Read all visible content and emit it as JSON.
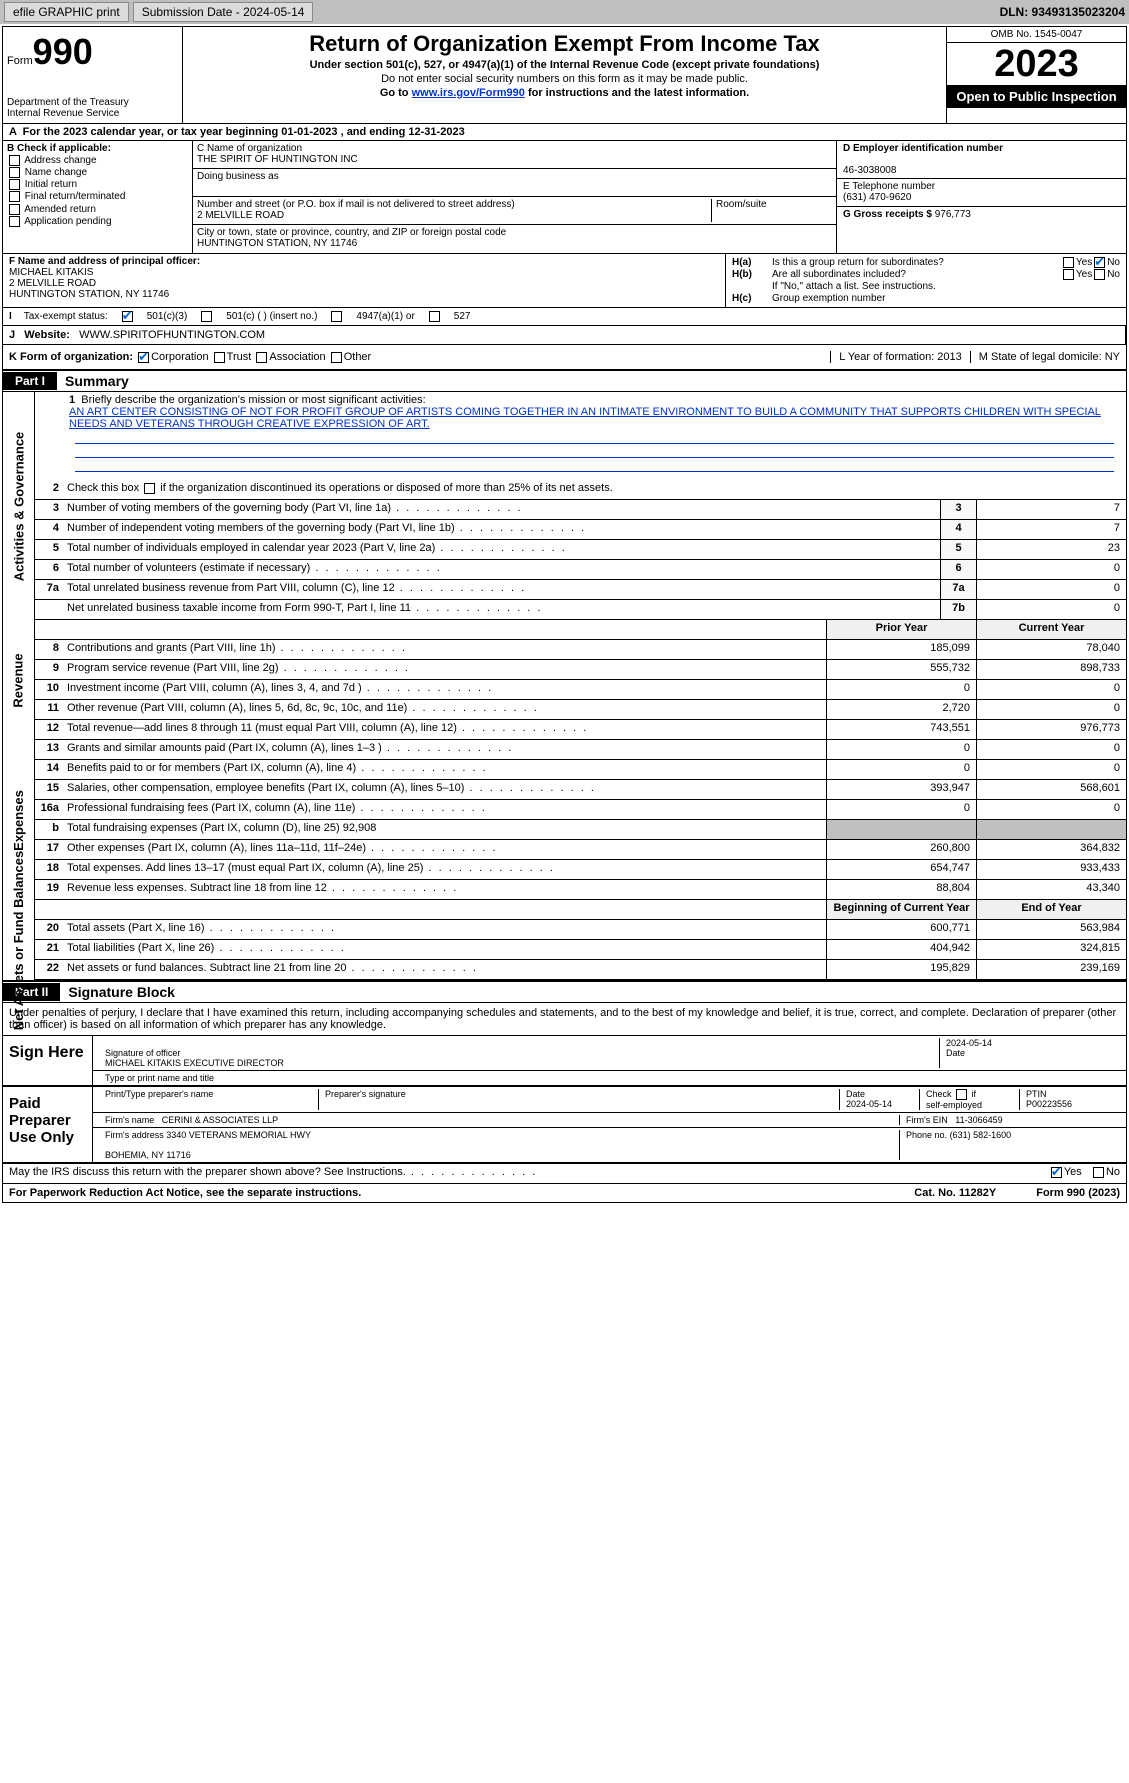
{
  "topbar": {
    "efile": "efile GRAPHIC print",
    "submission_label": "Submission Date - 2024-05-14",
    "dln": "DLN: 93493135023204"
  },
  "header": {
    "form_prefix": "Form",
    "form_number": "990",
    "dept": "Department of the Treasury",
    "irs": "Internal Revenue Service",
    "title": "Return of Organization Exempt From Income Tax",
    "sub1": "Under section 501(c), 527, or 4947(a)(1) of the Internal Revenue Code (except private foundations)",
    "sub2": "Do not enter social security numbers on this form as it may be made public.",
    "sub3_pre": "Go to ",
    "sub3_link": "www.irs.gov/Form990",
    "sub3_post": " for instructions and the latest information.",
    "omb": "OMB No. 1545-0047",
    "year": "2023",
    "inspection": "Open to Public Inspection"
  },
  "row_a": "For the 2023 calendar year, or tax year beginning 01-01-2023    , and ending 12-31-2023",
  "section_b": {
    "label": "B Check if applicable:",
    "opts": [
      "Address change",
      "Name change",
      "Initial return",
      "Final return/terminated",
      "Amended return",
      "Application pending"
    ]
  },
  "section_c": {
    "name_label": "C Name of organization",
    "name": "THE SPIRIT OF HUNTINGTON INC",
    "dba_label": "Doing business as",
    "dba": "",
    "street_label": "Number and street (or P.O. box if mail is not delivered to street address)",
    "street": "2 MELVILLE ROAD",
    "room_label": "Room/suite",
    "city_label": "City or town, state or province, country, and ZIP or foreign postal code",
    "city": "HUNTINGTON STATION, NY  11746"
  },
  "section_d": {
    "ein_label": "D Employer identification number",
    "ein": "46-3038008",
    "phone_label": "E Telephone number",
    "phone": "(631) 470-9620",
    "gross_label": "G Gross receipts $",
    "gross": "976,773"
  },
  "section_f": {
    "label": "F  Name and address of principal officer:",
    "name": "MICHAEL KITAKIS",
    "street": "2 MELVILLE ROAD",
    "city": "HUNTINGTON STATION, NY  11746"
  },
  "section_h": {
    "ha": "Is this a group return for subordinates?",
    "hb": "Are all subordinates included?",
    "hb_note": "If \"No,\" attach a list. See instructions.",
    "hc": "Group exemption number"
  },
  "row_i": {
    "label": "Tax-exempt status:",
    "opt1": "501(c)(3)",
    "opt2": "501(c) (  ) (insert no.)",
    "opt3": "4947(a)(1) or",
    "opt4": "527"
  },
  "row_j": {
    "label": "Website:",
    "value": "WWW.SPIRITOFHUNTINGTON.COM"
  },
  "row_k": {
    "label": "K Form of organization:",
    "opts": [
      "Corporation",
      "Trust",
      "Association",
      "Other"
    ],
    "l": "L Year of formation: 2013",
    "m": "M State of legal domicile: NY"
  },
  "part1": {
    "tag": "Part I",
    "title": "Summary",
    "mission_label": "Briefly describe the organization's mission or most significant activities:",
    "mission": "AN ART CENTER CONSISTING OF NOT FOR PROFIT GROUP OF ARTISTS COMING TOGETHER IN AN INTIMATE ENVIRONMENT TO BUILD A COMMUNITY THAT SUPPORTS CHILDREN WITH SPECIAL NEEDS AND VETERANS THROUGH CREATIVE EXPRESSION OF ART.",
    "line2": "Check this box      if the organization discontinued its operations or disposed of more than 25% of its net assets.",
    "sections": {
      "governance": "Activities & Governance",
      "revenue": "Revenue",
      "expenses": "Expenses",
      "netassets": "Net Assets or Fund Balances"
    },
    "gov_lines": [
      {
        "n": "3",
        "d": "Number of voting members of the governing body (Part VI, line 1a)",
        "b": "3",
        "v": "7"
      },
      {
        "n": "4",
        "d": "Number of independent voting members of the governing body (Part VI, line 1b)",
        "b": "4",
        "v": "7"
      },
      {
        "n": "5",
        "d": "Total number of individuals employed in calendar year 2023 (Part V, line 2a)",
        "b": "5",
        "v": "23"
      },
      {
        "n": "6",
        "d": "Total number of volunteers (estimate if necessary)",
        "b": "6",
        "v": "0"
      },
      {
        "n": "7a",
        "d": "Total unrelated business revenue from Part VIII, column (C), line 12",
        "b": "7a",
        "v": "0"
      },
      {
        "n": "",
        "d": "Net unrelated business taxable income from Form 990-T, Part I, line 11",
        "b": "7b",
        "v": "0"
      }
    ],
    "rev_hdr": {
      "prior": "Prior Year",
      "curr": "Current Year"
    },
    "rev_lines": [
      {
        "n": "8",
        "d": "Contributions and grants (Part VIII, line 1h)",
        "p": "185,099",
        "c": "78,040"
      },
      {
        "n": "9",
        "d": "Program service revenue (Part VIII, line 2g)",
        "p": "555,732",
        "c": "898,733"
      },
      {
        "n": "10",
        "d": "Investment income (Part VIII, column (A), lines 3, 4, and 7d )",
        "p": "0",
        "c": "0"
      },
      {
        "n": "11",
        "d": "Other revenue (Part VIII, column (A), lines 5, 6d, 8c, 9c, 10c, and 11e)",
        "p": "2,720",
        "c": "0"
      },
      {
        "n": "12",
        "d": "Total revenue—add lines 8 through 11 (must equal Part VIII, column (A), line 12)",
        "p": "743,551",
        "c": "976,773"
      }
    ],
    "exp_lines": [
      {
        "n": "13",
        "d": "Grants and similar amounts paid (Part IX, column (A), lines 1–3 )",
        "p": "0",
        "c": "0"
      },
      {
        "n": "14",
        "d": "Benefits paid to or for members (Part IX, column (A), line 4)",
        "p": "0",
        "c": "0"
      },
      {
        "n": "15",
        "d": "Salaries, other compensation, employee benefits (Part IX, column (A), lines 5–10)",
        "p": "393,947",
        "c": "568,601"
      },
      {
        "n": "16a",
        "d": "Professional fundraising fees (Part IX, column (A), line 11e)",
        "p": "0",
        "c": "0"
      },
      {
        "n": "b",
        "d": "Total fundraising expenses (Part IX, column (D), line 25) 92,908",
        "p": "",
        "c": "",
        "grey": true
      },
      {
        "n": "17",
        "d": "Other expenses (Part IX, column (A), lines 11a–11d, 11f–24e)",
        "p": "260,800",
        "c": "364,832"
      },
      {
        "n": "18",
        "d": "Total expenses. Add lines 13–17 (must equal Part IX, column (A), line 25)",
        "p": "654,747",
        "c": "933,433"
      },
      {
        "n": "19",
        "d": "Revenue less expenses. Subtract line 18 from line 12",
        "p": "88,804",
        "c": "43,340"
      }
    ],
    "na_hdr": {
      "prior": "Beginning of Current Year",
      "curr": "End of Year"
    },
    "na_lines": [
      {
        "n": "20",
        "d": "Total assets (Part X, line 16)",
        "p": "600,771",
        "c": "563,984"
      },
      {
        "n": "21",
        "d": "Total liabilities (Part X, line 26)",
        "p": "404,942",
        "c": "324,815"
      },
      {
        "n": "22",
        "d": "Net assets or fund balances. Subtract line 21 from line 20",
        "p": "195,829",
        "c": "239,169"
      }
    ]
  },
  "part2": {
    "tag": "Part II",
    "title": "Signature Block",
    "intro": "Under penalties of perjury, I declare that I have examined this return, including accompanying schedules and statements, and to the best of my knowledge and belief, it is true, correct, and complete. Declaration of preparer (other than officer) is based on all information of which preparer has any knowledge.",
    "sign_here": "Sign Here",
    "sig_officer": "Signature of officer",
    "officer_name": "MICHAEL KITAKIS EXECUTIVE DIRECTOR",
    "officer_title_label": "Type or print name and title",
    "date": "2024-05-14",
    "paid_label": "Paid Preparer Use Only",
    "prep_name_label": "Print/Type preparer's name",
    "prep_sig_label": "Preparer's signature",
    "prep_date_label": "Date",
    "prep_date": "2024-05-14",
    "check_label": "Check      if self-employed",
    "ptin_label": "PTIN",
    "ptin": "P00223556",
    "firm_name_label": "Firm's name",
    "firm_name": "CERINI & ASSOCIATES LLP",
    "firm_ein_label": "Firm's EIN",
    "firm_ein": "11-3066459",
    "firm_addr_label": "Firm's address",
    "firm_addr1": "3340 VETERANS MEMORIAL HWY",
    "firm_addr2": "BOHEMIA, NY  11716",
    "firm_phone_label": "Phone no.",
    "firm_phone": "(631) 582-1600",
    "discuss": "May the IRS discuss this return with the preparer shown above? See Instructions."
  },
  "footer": {
    "left": "For Paperwork Reduction Act Notice, see the separate instructions.",
    "center": "Cat. No. 11282Y",
    "right": "Form 990 (2023)"
  }
}
